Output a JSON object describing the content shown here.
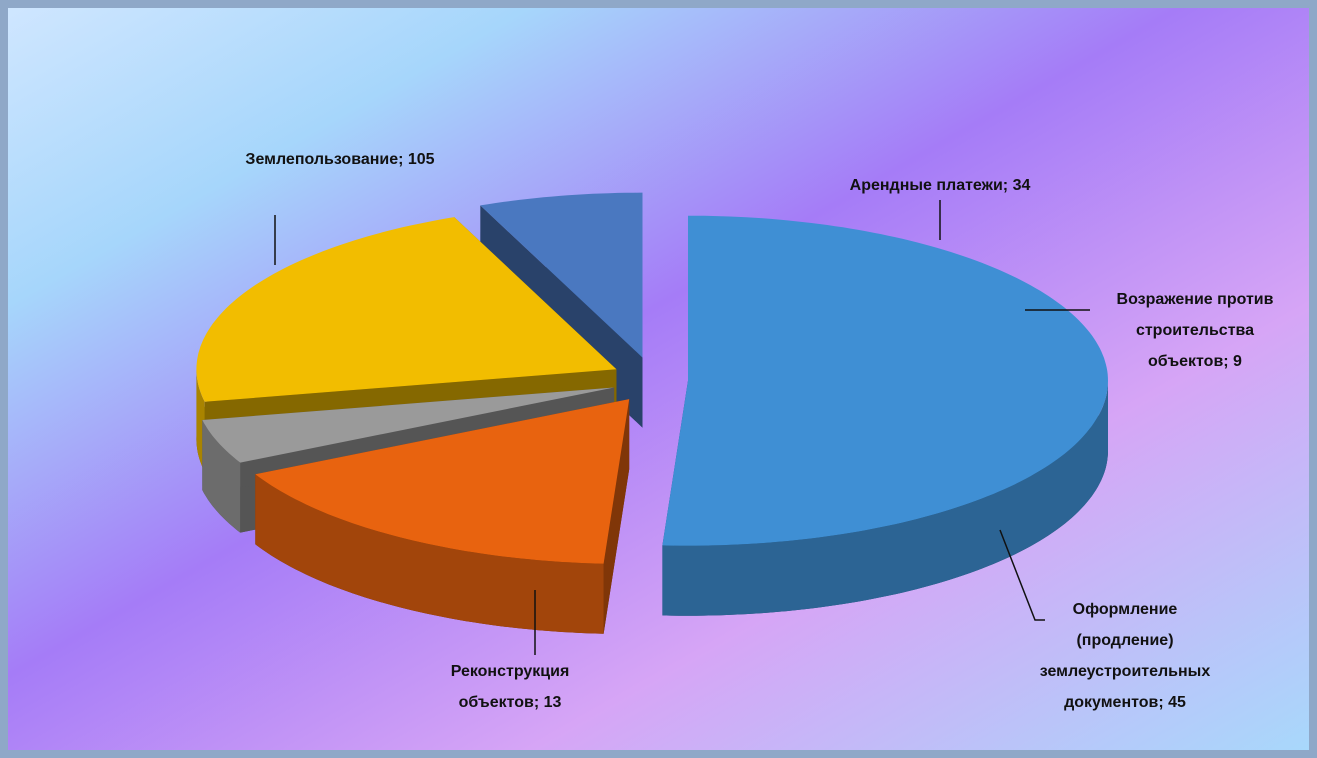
{
  "chart_data": {
    "type": "pie3d",
    "values": [
      105,
      34,
      9,
      45,
      13
    ],
    "value_labels": [
      [
        "Землепользование; 105"
      ],
      [
        "Арендные платежи; 34"
      ],
      [
        "Возражение против",
        "строительства",
        "объектов; 9"
      ],
      [
        "Оформление",
        "(продление)",
        "землеустроительных",
        "документов; 45"
      ],
      [
        "Реконструкция",
        "объектов; 13"
      ]
    ],
    "colors": [
      "#3f8fd4",
      "#e8630f",
      "#9a9a9a",
      "#f2bd00",
      "#4a78c0"
    ]
  }
}
